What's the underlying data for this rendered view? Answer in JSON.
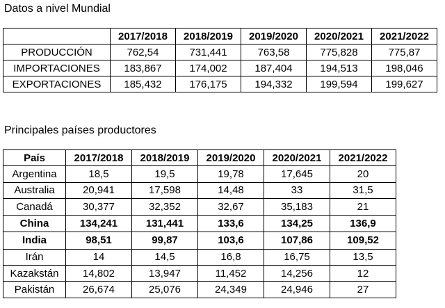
{
  "world": {
    "title": "Datos a nivel Mundial",
    "headers": [
      "",
      "2017/2018",
      "2018/2019",
      "2019/2020",
      "2020/2021",
      "2021/2022"
    ],
    "rows": [
      {
        "label": "PRODUCCIÓN",
        "values": [
          "762,54",
          "731,441",
          "763,58",
          "775,828",
          "775,87"
        ]
      },
      {
        "label": "IMPORTACIONES",
        "values": [
          "183,867",
          "174,002",
          "187,404",
          "194,513",
          "198,046"
        ]
      },
      {
        "label": "EXPORTACIONES",
        "values": [
          "185,432",
          "176,175",
          "194,332",
          "199,594",
          "199,627"
        ]
      }
    ]
  },
  "producers": {
    "title": "Principales países productores",
    "headers": [
      "País",
      "2017/2018",
      "2018/2019",
      "2019/2020",
      "2020/2021",
      "2021/2022"
    ],
    "rows": [
      {
        "label": "Argentina",
        "bold": false,
        "values": [
          "18,5",
          "19,5",
          "19,78",
          "17,645",
          "20"
        ]
      },
      {
        "label": "Australia",
        "bold": false,
        "values": [
          "20,941",
          "17,598",
          "14,48",
          "33",
          "31,5"
        ]
      },
      {
        "label": "Canadá",
        "bold": false,
        "values": [
          "30,377",
          "32,352",
          "32,67",
          "35,183",
          "21"
        ]
      },
      {
        "label": "China",
        "bold": true,
        "values": [
          "134,241",
          "131,441",
          "133,6",
          "134,25",
          "136,9"
        ]
      },
      {
        "label": "India",
        "bold": true,
        "values": [
          "98,51",
          "99,87",
          "103,6",
          "107,86",
          "109,52"
        ]
      },
      {
        "label": "Irán",
        "bold": false,
        "values": [
          "14",
          "14,5",
          "16,8",
          "16,75",
          "13,5"
        ]
      },
      {
        "label": "Kazakstán",
        "bold": false,
        "values": [
          "14,802",
          "13,947",
          "11,452",
          "14,256",
          "12"
        ]
      },
      {
        "label": "Pakistán",
        "bold": false,
        "values": [
          "26,674",
          "25,076",
          "24,349",
          "24,946",
          "27"
        ]
      }
    ]
  }
}
